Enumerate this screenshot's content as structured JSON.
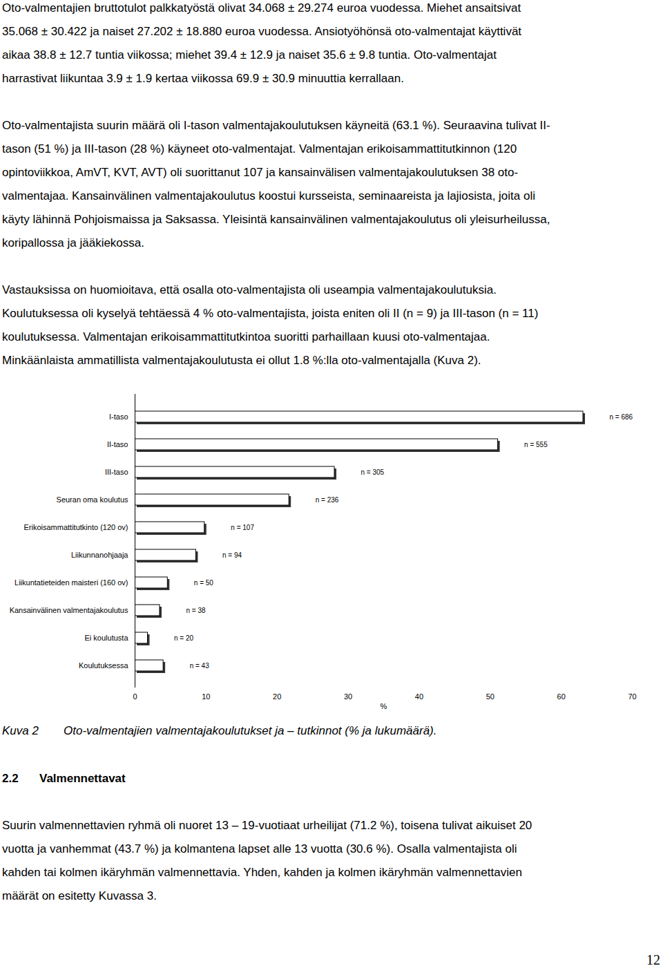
{
  "paragraphs_top": [
    [
      "Oto-valmentajien bruttotulot palkkatyöstä olivat 34.068 ± 29.274 euroa vuodessa. Miehet ansaitsivat",
      "35.068 ± 30.422 ja naiset 27.202 ± 18.880 euroa vuodessa. Ansiotyöhönsä oto-valmentajat käyttivät",
      "aikaa 38.8 ± 12.7 tuntia viikossa; miehet 39.4 ± 12.9 ja naiset 35.6 ± 9.8 tuntia. Oto-valmentajat",
      "harrastivat liikuntaa 3.9 ± 1.9 kertaa viikossa 69.9 ± 30.9 minuuttia kerrallaan."
    ],
    [
      "Oto-valmentajista suurin määrä oli I-tason valmentajakoulutuksen käyneitä (63.1 %). Seuraavina tulivat II-",
      "tason (51 %) ja III-tason (28 %) käyneet oto-valmentajat. Valmentajan erikoisammattitutkinnon (120",
      "opintoviikkoa, AmVT, KVT, AVT) oli suorittanut 107 ja kansainvälisen valmentajakoulutuksen 38 oto-",
      "valmentajaa. Kansainvälinen valmentajakoulutus koostui kursseista, seminaareista ja lajiosista, joita oli",
      "käyty lähinnä Pohjoismaissa ja Saksassa. Yleisintä kansainvälinen valmentajakoulutus oli yleisurheilussa,",
      "koripallossa ja jääkiekossa."
    ],
    [
      "Vastauksissa on huomioitava, että osalla oto-valmentajista oli useampia valmentajakoulutuksia.",
      "Koulutuksessa oli kyselyä tehtäessä 4 % oto-valmentajista, joista eniten oli II (n = 9) ja III-tason (n = 11)",
      "koulutuksessa. Valmentajan erikoisammattitutkintoa suoritti parhaillaan kuusi oto-valmentajaa.",
      "Minkäänlaista ammatillista valmentajakoulutusta ei ollut 1.8 %:lla oto-valmentajalla (Kuva 2)."
    ]
  ],
  "chart_data": {
    "type": "bar",
    "orientation": "horizontal",
    "categories": [
      "I-taso",
      "II-taso",
      "III-taso",
      "Seuran oma koulutus",
      "Erikoisammattitutkinto (120 ov)",
      "Liikunnanohjaaja",
      "Liikuntatieteiden maisteri (160 ov)",
      "Kansainvälinen valmentajakoulutus",
      "Ei koulutusta",
      "Koulutuksessa"
    ],
    "values": [
      63.1,
      51.1,
      28.1,
      21.7,
      9.8,
      8.6,
      4.6,
      3.5,
      1.8,
      4.0
    ],
    "count_labels": [
      "n = 686",
      "n = 555",
      "n = 305",
      "n = 236",
      "n = 107",
      "n = 94",
      "n = 50",
      "n = 38",
      "n = 20",
      "n = 43"
    ],
    "color": "#ffffff",
    "xlabel": "%",
    "xlim": [
      0,
      70
    ],
    "xticks": [
      0,
      10,
      20,
      30,
      40,
      50,
      60,
      70
    ],
    "grid": false
  },
  "caption": {
    "number": "Kuva 2",
    "text": "Oto-valmentajien valmentajakoulutukset ja – tutkinnot (% ja lukumäärä)."
  },
  "section": {
    "number": "2.2",
    "title": "Valmennettavat"
  },
  "paragraphs_bottom": [
    [
      "Suurin valmennettavien ryhmä oli nuoret 13 – 19-vuotiaat urheilijat (71.2 %), toisena tulivat aikuiset 20",
      "vuotta ja vanhemmat (43.7 %) ja kolmantena lapset alle 13 vuotta (30.6 %). Osalla valmentajista oli",
      "kahden tai kolmen ikäryhmän valmennettavia. Yhden, kahden ja kolmen ikäryhmän valmennettavien",
      "määrät on esitetty Kuvassa 3."
    ]
  ],
  "page_number": "12"
}
